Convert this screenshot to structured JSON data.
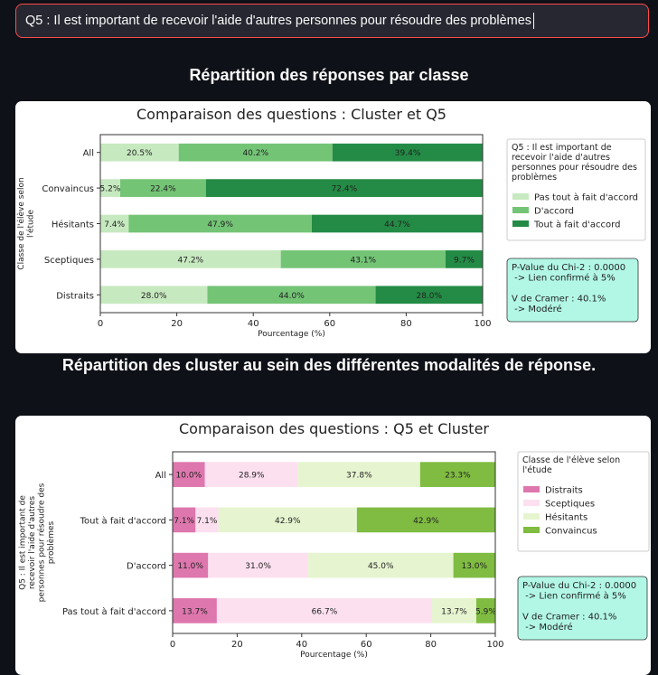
{
  "select": {
    "value": "Q5 : Il est important de recevoir l'aide d'autres personnes pour résoudre des problèmes"
  },
  "section1_title": "Répartition des réponses par classe",
  "section2_title": "Répartition des cluster au sein des différentes modalités de réponse.",
  "chart_data": [
    {
      "type": "bar",
      "orientation": "horizontal-stacked",
      "title": "Comparaison des questions : Cluster et Q5",
      "xlabel": "Pourcentage (%)",
      "ylabel_lines": [
        "Classe de l'élève selon",
        "l'étude"
      ],
      "xlim": [
        0,
        100
      ],
      "xticks": [
        "0",
        "20",
        "40",
        "60",
        "80",
        "100"
      ],
      "categories": [
        "All",
        "Convaincus",
        "Hésitants",
        "Sceptiques",
        "Distraits"
      ],
      "legend_title_lines": [
        "Q5 : Il est important de",
        "recevoir l'aide d'autres",
        "personnes pour résoudre des",
        "problèmes"
      ],
      "series": [
        {
          "name": "Pas tout à fait d'accord",
          "color": "#c7e9c0",
          "values": [
            20.5,
            5.2,
            7.4,
            47.2,
            28.0
          ],
          "labels": [
            "20.5%",
            "5.2%",
            "7.4%",
            "47.2%",
            "28.0%"
          ]
        },
        {
          "name": "D'accord",
          "color": "#74c476",
          "values": [
            40.2,
            22.4,
            47.9,
            43.1,
            44.0
          ],
          "labels": [
            "40.2%",
            "22.4%",
            "47.9%",
            "43.1%",
            "44.0%"
          ]
        },
        {
          "name": "Tout à fait d'accord",
          "color": "#238b45",
          "values": [
            39.4,
            72.4,
            44.7,
            9.7,
            28.0
          ],
          "labels": [
            "39.4%",
            "72.4%",
            "44.7%",
            "9.7%",
            "28.0%"
          ]
        }
      ],
      "stats_lines": [
        "P-Value du Chi-2 : 0.0000",
        "    -> Lien confirmé à 5%",
        "",
        "V de Cramer : 40.1%",
        "    -> Modéré"
      ]
    },
    {
      "type": "bar",
      "orientation": "horizontal-stacked",
      "title": "Comparaison des questions : Q5 et Cluster",
      "xlabel": "Pourcentage (%)",
      "ylabel_lines": [
        "Q5 : Il est important de",
        "recevoir l'aide d'autres",
        "personnes pour résoudre des",
        "problèmes"
      ],
      "xlim": [
        0,
        100
      ],
      "xticks": [
        "0",
        "20",
        "40",
        "60",
        "80",
        "100"
      ],
      "categories": [
        "All",
        "Tout à fait d'accord",
        "D'accord",
        "Pas tout à fait d'accord"
      ],
      "legend_title_lines": [
        "Classe de l'élève selon",
        "l'étude"
      ],
      "series": [
        {
          "name": "Distraits",
          "color": "#de77ae",
          "values": [
            10.0,
            7.1,
            11.0,
            13.7
          ],
          "labels": [
            "10.0%",
            "7.1%",
            "11.0%",
            "13.7%"
          ]
        },
        {
          "name": "Sceptiques",
          "color": "#fde0ef",
          "values": [
            28.9,
            7.1,
            31.0,
            66.7
          ],
          "labels": [
            "28.9%",
            "7.1%",
            "31.0%",
            "66.7%"
          ]
        },
        {
          "name": "Hésitants",
          "color": "#e6f5d0",
          "values": [
            37.8,
            42.9,
            45.0,
            13.7
          ],
          "labels": [
            "37.8%",
            "42.9%",
            "45.0%",
            "13.7%"
          ]
        },
        {
          "name": "Convaincus",
          "color": "#7fbc41",
          "values": [
            23.3,
            42.9,
            13.0,
            5.9
          ],
          "labels": [
            "23.3%",
            "42.9%",
            "13.0%",
            "5.9%"
          ]
        }
      ],
      "stats_lines": [
        "P-Value du Chi-2 : 0.0000",
        "    -> Lien confirmé à 5%",
        "",
        "V de Cramer : 40.1%",
        "    -> Modéré"
      ]
    }
  ]
}
